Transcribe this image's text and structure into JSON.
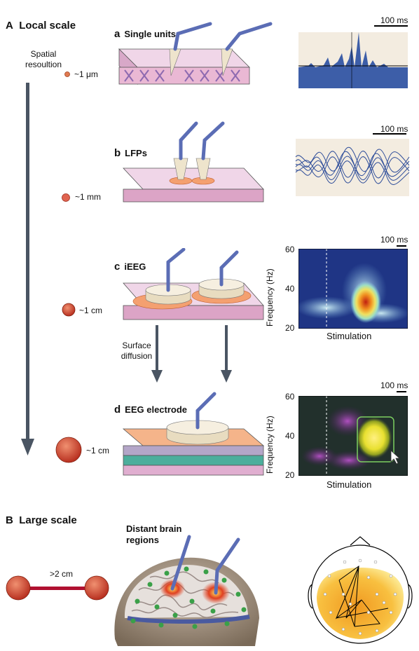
{
  "section_a": {
    "letter": "A",
    "title": "Local scale"
  },
  "section_b": {
    "letter": "B",
    "title": "Large scale"
  },
  "spatial_label": "Spatial\nresoultion",
  "resolutions": [
    "~1 μm",
    "~1 mm",
    "~1 cm",
    "~1 cm"
  ],
  "panels": [
    {
      "letter": "a",
      "title": "Single units"
    },
    {
      "letter": "b",
      "title": "LFPs"
    },
    {
      "letter": "c",
      "title": "iEEG"
    },
    {
      "letter": "d",
      "title": "EEG electrode"
    }
  ],
  "scale_bar": "100 ms",
  "diffusion_label": "Surface\ndiffusion",
  "spectrogram": {
    "ylabel": "Frequency (Hz)",
    "ticks": [
      "60",
      "40",
      "20"
    ],
    "xlabel": "Stimulation"
  },
  "distance_label": ">2 cm",
  "brain_label": "Distant brain\nregions",
  "colors": {
    "arrow": "#4a5563",
    "electrode": "#5b6db5",
    "cortex": "#e9cbe0",
    "link": "#b01030"
  }
}
